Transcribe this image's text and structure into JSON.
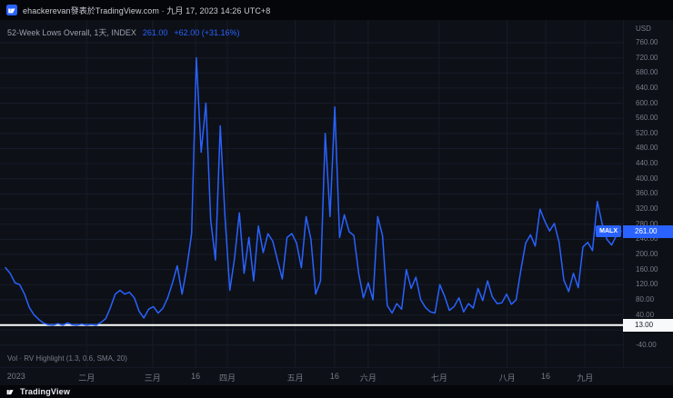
{
  "attribution": {
    "text": "ehackerevan發表於TradingView.com · 九月 17, 2023 14:26 UTC+8"
  },
  "legend": {
    "title": "52-Week Lows Overall, 1天, INDEX",
    "price": "261.00",
    "change": "+62.00 (+31.16%)"
  },
  "indicator": {
    "label": "Vol · RV Highlight (1.3, 0.6, SMA, 20)"
  },
  "price_scale": {
    "currency": "USD",
    "price_tag": "MALX",
    "price_label": "261.00",
    "hline_label": "13.00"
  },
  "footer": {
    "brand": "TradingView"
  },
  "colors": {
    "accent": "#2962ff",
    "line": "#2962ff",
    "background": "#0d1017",
    "grid": "#161c28",
    "axis_text": "#787b86",
    "hline": "#ffffff",
    "price_label_bg": "#2962ff",
    "hline_label_bg": "#f8f9fb"
  },
  "chart_data": {
    "type": "line",
    "title": "52-Week Lows Overall",
    "ylabel": "USD",
    "ylim": [
      -98,
      820
    ],
    "yticks": [
      760,
      720,
      680,
      640,
      600,
      560,
      520,
      480,
      440,
      400,
      360,
      320,
      280,
      240,
      200,
      160,
      120,
      80,
      40,
      0,
      -40
    ],
    "yticks_hidden": [
      0
    ],
    "hline": 13,
    "last_value": 261,
    "grid": true,
    "legend_position": "top-left",
    "x_ticks": [
      {
        "label": "2023",
        "pos": 0.026
      },
      {
        "label": "二月",
        "pos": 0.139
      },
      {
        "label": "三月",
        "pos": 0.245
      },
      {
        "label": "16",
        "pos": 0.314
      },
      {
        "label": "四月",
        "pos": 0.365
      },
      {
        "label": "五月",
        "pos": 0.474
      },
      {
        "label": "16",
        "pos": 0.537
      },
      {
        "label": "六月",
        "pos": 0.591
      },
      {
        "label": "七月",
        "pos": 0.705
      },
      {
        "label": "八月",
        "pos": 0.814
      },
      {
        "label": "16",
        "pos": 0.876
      },
      {
        "label": "九月",
        "pos": 0.939
      }
    ],
    "series": [
      {
        "name": "52-Week Lows Overall",
        "values": [
          165,
          150,
          125,
          120,
          95,
          60,
          40,
          28,
          18,
          14,
          13,
          17,
          13,
          19,
          14,
          13,
          16,
          13,
          15,
          13,
          20,
          30,
          60,
          95,
          105,
          95,
          100,
          85,
          50,
          32,
          55,
          62,
          45,
          58,
          85,
          125,
          170,
          95,
          165,
          255,
          720,
          470,
          600,
          290,
          185,
          540,
          300,
          105,
          190,
          310,
          150,
          245,
          130,
          275,
          205,
          255,
          235,
          185,
          135,
          245,
          255,
          230,
          165,
          300,
          240,
          95,
          130,
          520,
          300,
          590,
          245,
          305,
          260,
          250,
          150,
          85,
          125,
          80,
          300,
          250,
          65,
          45,
          70,
          55,
          160,
          110,
          140,
          80,
          60,
          48,
          45,
          120,
          90,
          52,
          62,
          85,
          48,
          70,
          58,
          110,
          78,
          130,
          88,
          70,
          72,
          95,
          68,
          80,
          160,
          230,
          252,
          222,
          320,
          288,
          262,
          282,
          232,
          132,
          102,
          150,
          112,
          220,
          232,
          210,
          340,
          282,
          240,
          225,
          250,
          261
        ]
      }
    ]
  }
}
